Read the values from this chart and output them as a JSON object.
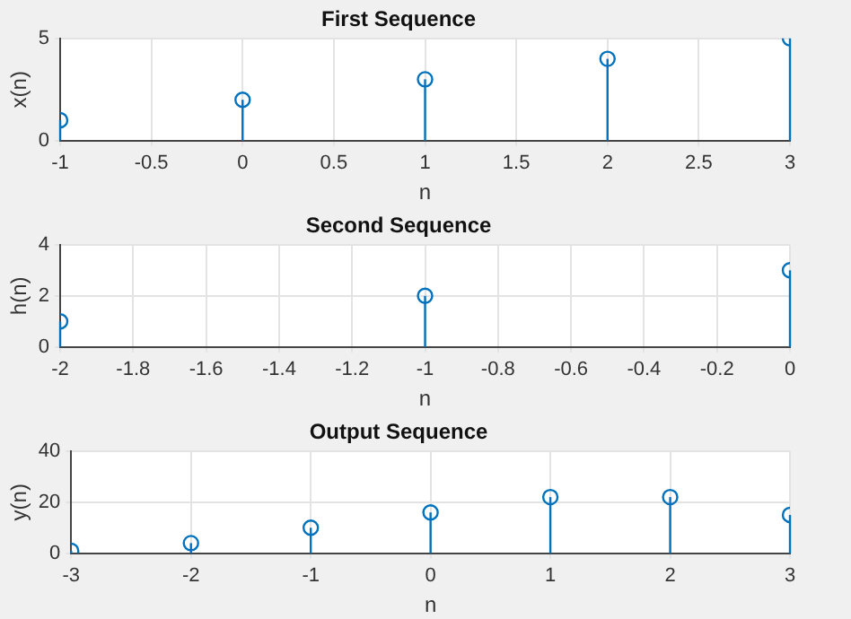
{
  "chart_data": [
    {
      "type": "lollipop",
      "title": "First Sequence",
      "xlabel": "n",
      "ylabel": "x(n)",
      "x": [
        -1,
        0,
        1,
        2,
        3
      ],
      "values": [
        1,
        2,
        3,
        4,
        5
      ],
      "color": "#0072bd",
      "xlim": [
        -1,
        3
      ],
      "xticks": [
        -1,
        -0.5,
        0,
        0.5,
        1,
        1.5,
        2,
        2.5,
        3
      ],
      "ylim": [
        0,
        5
      ],
      "yticks": [
        0,
        5
      ],
      "grid": true,
      "marker": "circle"
    },
    {
      "type": "lollipop",
      "title": "Second Sequence",
      "xlabel": "n",
      "ylabel": "h(n)",
      "x": [
        -2,
        -1,
        0
      ],
      "values": [
        1,
        2,
        3
      ],
      "color": "#0072bd",
      "xlim": [
        -2,
        0
      ],
      "xticks": [
        -2,
        -1.8,
        -1.6,
        -1.4,
        -1.2,
        -1,
        -0.8,
        -0.6,
        -0.4,
        -0.2,
        0
      ],
      "ylim": [
        0,
        4
      ],
      "yticks": [
        0,
        2,
        4
      ],
      "grid": true,
      "marker": "circle"
    },
    {
      "type": "lollipop",
      "title": "Output Sequence",
      "xlabel": "n",
      "ylabel": "y(n)",
      "x": [
        -3,
        -2,
        -1,
        0,
        1,
        2,
        3
      ],
      "values": [
        1,
        4,
        10,
        16,
        22,
        22,
        15
      ],
      "color": "#0072bd",
      "xlim": [
        -3,
        3
      ],
      "xticks": [
        -3,
        -2,
        -1,
        0,
        1,
        2,
        3
      ],
      "ylim": [
        0,
        40
      ],
      "yticks": [
        0,
        20,
        40
      ],
      "grid": true,
      "marker": "circle"
    }
  ]
}
